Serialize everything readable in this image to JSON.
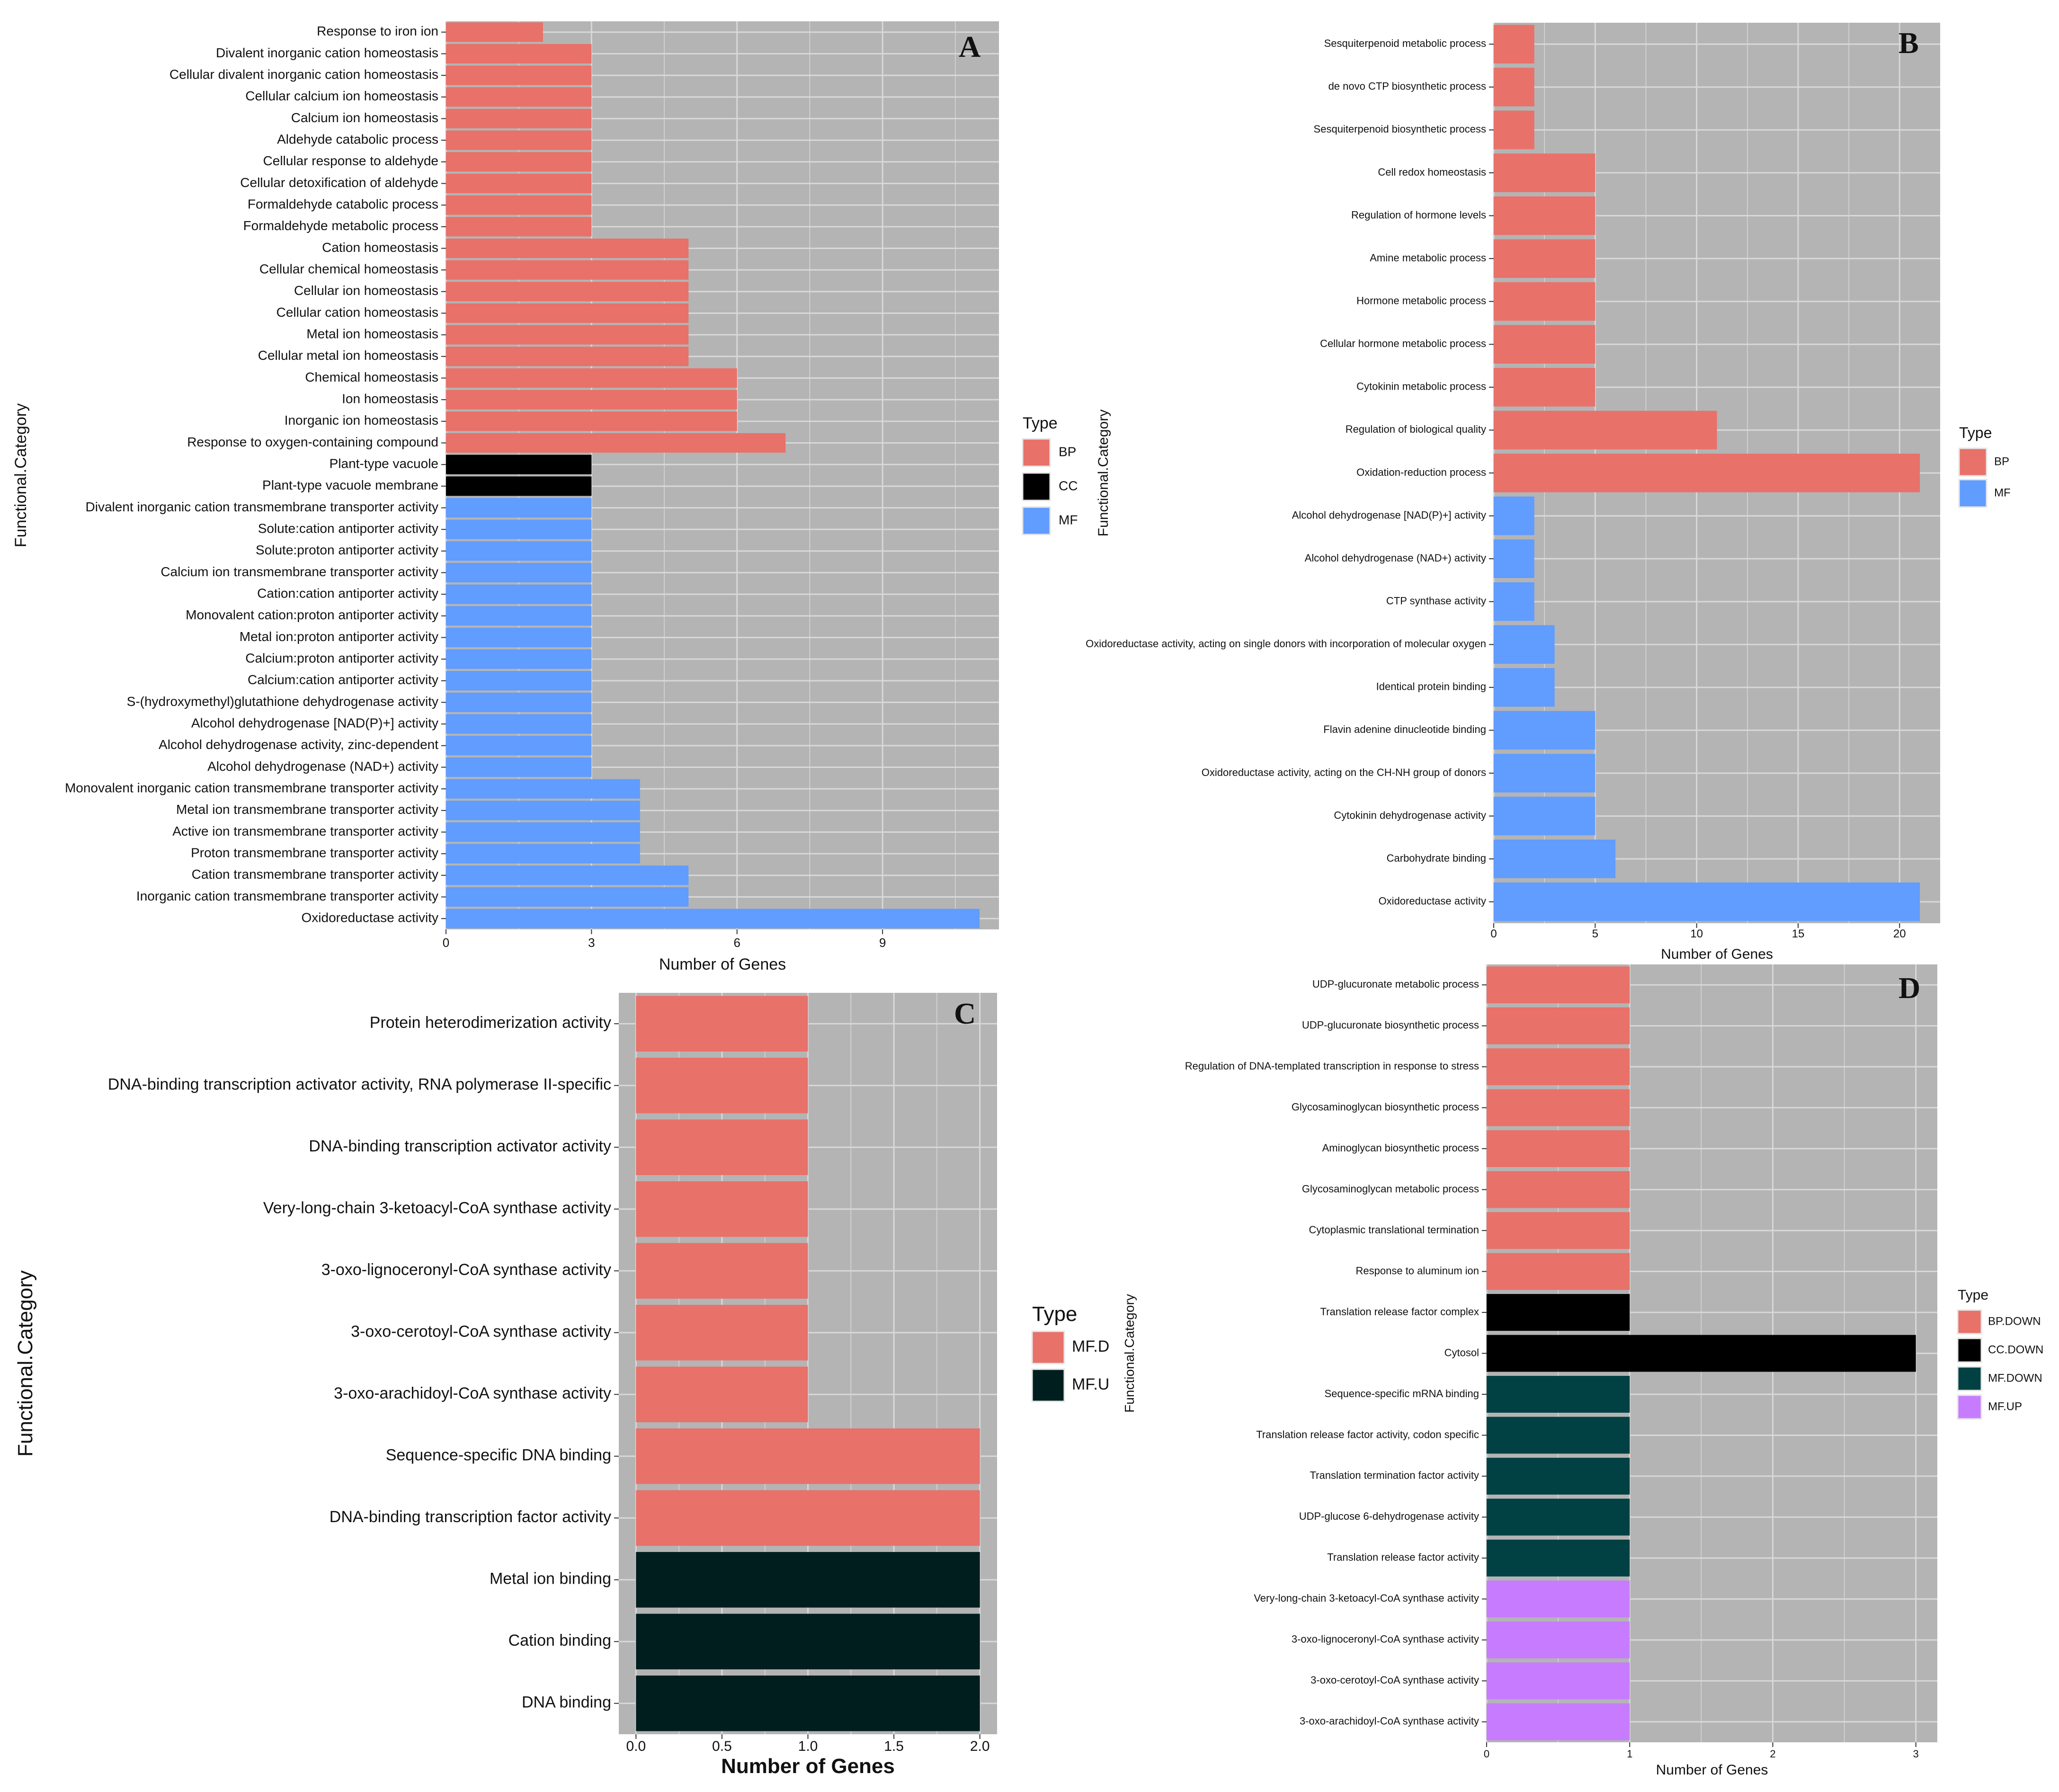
{
  "figure": {
    "panel_bg": "#b4b4b4",
    "grid_color": "#d8d8d8",
    "type_colors": {
      "BP": "#e8716a",
      "CC": "#000000",
      "MF": "#619cff",
      "MF.D": "#e8716a",
      "MF.U": "#011e1e",
      "BP.DOWN": "#e8716a",
      "CC.DOWN": "#000000",
      "MF.DOWN": "#024143",
      "MF.UP": "#c77cff"
    }
  },
  "chart_data": [
    {
      "panel": "A",
      "type": "bar",
      "orientation": "horizontal",
      "xlabel": "Number of Genes",
      "ylabel": "Functional.Category",
      "xlim": [
        0,
        11.4
      ],
      "xticks": [
        "0",
        "3",
        "6",
        "9"
      ],
      "grid": true,
      "legend": {
        "title": "Type",
        "items": [
          "BP",
          "CC",
          "MF"
        ],
        "position": "right"
      },
      "bars": [
        {
          "label": "Response to iron ion",
          "value": 2,
          "type": "BP"
        },
        {
          "label": "Divalent inorganic cation homeostasis",
          "value": 3,
          "type": "BP"
        },
        {
          "label": "Cellular divalent inorganic cation homeostasis",
          "value": 3,
          "type": "BP"
        },
        {
          "label": "Cellular calcium ion homeostasis",
          "value": 3,
          "type": "BP"
        },
        {
          "label": "Calcium ion homeostasis",
          "value": 3,
          "type": "BP"
        },
        {
          "label": "Aldehyde catabolic process",
          "value": 3,
          "type": "BP"
        },
        {
          "label": "Cellular response to aldehyde",
          "value": 3,
          "type": "BP"
        },
        {
          "label": "Cellular detoxification of aldehyde",
          "value": 3,
          "type": "BP"
        },
        {
          "label": "Formaldehyde catabolic process",
          "value": 3,
          "type": "BP"
        },
        {
          "label": "Formaldehyde metabolic process",
          "value": 3,
          "type": "BP"
        },
        {
          "label": "Cation homeostasis",
          "value": 5,
          "type": "BP"
        },
        {
          "label": "Cellular chemical homeostasis",
          "value": 5,
          "type": "BP"
        },
        {
          "label": "Cellular ion homeostasis",
          "value": 5,
          "type": "BP"
        },
        {
          "label": "Cellular cation homeostasis",
          "value": 5,
          "type": "BP"
        },
        {
          "label": "Metal ion homeostasis",
          "value": 5,
          "type": "BP"
        },
        {
          "label": "Cellular metal ion homeostasis",
          "value": 5,
          "type": "BP"
        },
        {
          "label": "Chemical homeostasis",
          "value": 6,
          "type": "BP"
        },
        {
          "label": "Ion homeostasis",
          "value": 6,
          "type": "BP"
        },
        {
          "label": "Inorganic ion homeostasis",
          "value": 6,
          "type": "BP"
        },
        {
          "label": "Response to oxygen-containing compound",
          "value": 7,
          "type": "BP"
        },
        {
          "label": "Plant-type vacuole",
          "value": 3,
          "type": "CC"
        },
        {
          "label": "Plant-type vacuole membrane",
          "value": 3,
          "type": "CC"
        },
        {
          "label": "Divalent inorganic cation transmembrane transporter activity",
          "value": 3,
          "type": "MF"
        },
        {
          "label": "Solute:cation antiporter activity",
          "value": 3,
          "type": "MF"
        },
        {
          "label": "Solute:proton antiporter activity",
          "value": 3,
          "type": "MF"
        },
        {
          "label": "Calcium ion transmembrane transporter activity",
          "value": 3,
          "type": "MF"
        },
        {
          "label": "Cation:cation antiporter activity",
          "value": 3,
          "type": "MF"
        },
        {
          "label": "Monovalent cation:proton antiporter activity",
          "value": 3,
          "type": "MF"
        },
        {
          "label": "Metal ion:proton antiporter activity",
          "value": 3,
          "type": "MF"
        },
        {
          "label": "Calcium:proton antiporter activity",
          "value": 3,
          "type": "MF"
        },
        {
          "label": "Calcium:cation antiporter activity",
          "value": 3,
          "type": "MF"
        },
        {
          "label": "S-(hydroxymethyl)glutathione dehydrogenase activity",
          "value": 3,
          "type": "MF"
        },
        {
          "label": "Alcohol dehydrogenase [NAD(P)+] activity",
          "value": 3,
          "type": "MF"
        },
        {
          "label": "Alcohol dehydrogenase activity, zinc-dependent",
          "value": 3,
          "type": "MF"
        },
        {
          "label": "Alcohol dehydrogenase (NAD+) activity",
          "value": 3,
          "type": "MF"
        },
        {
          "label": "Monovalent inorganic cation transmembrane transporter activity",
          "value": 4,
          "type": "MF"
        },
        {
          "label": "Metal ion transmembrane transporter activity",
          "value": 4,
          "type": "MF"
        },
        {
          "label": "Active ion transmembrane transporter activity",
          "value": 4,
          "type": "MF"
        },
        {
          "label": "Proton transmembrane transporter activity",
          "value": 4,
          "type": "MF"
        },
        {
          "label": "Cation transmembrane transporter activity",
          "value": 5,
          "type": "MF"
        },
        {
          "label": "Inorganic cation transmembrane transporter activity",
          "value": 5,
          "type": "MF"
        },
        {
          "label": "Oxidoreductase activity",
          "value": 11,
          "type": "MF"
        }
      ]
    },
    {
      "panel": "B",
      "type": "bar",
      "orientation": "horizontal",
      "xlabel": "Number of Genes",
      "ylabel": "Functional.Category",
      "xlim": [
        0,
        22
      ],
      "xticks": [
        "0",
        "5",
        "10",
        "15",
        "20"
      ],
      "grid": true,
      "legend": {
        "title": "Type",
        "items": [
          "BP",
          "MF"
        ],
        "position": "right"
      },
      "bars": [
        {
          "label": "Sesquiterpenoid metabolic process",
          "value": 2,
          "type": "BP"
        },
        {
          "label": "de novo  CTP biosynthetic process",
          "value": 2,
          "type": "BP"
        },
        {
          "label": "Sesquiterpenoid biosynthetic process",
          "value": 2,
          "type": "BP"
        },
        {
          "label": "Cell redox homeostasis",
          "value": 5,
          "type": "BP"
        },
        {
          "label": "Regulation of hormone levels",
          "value": 5,
          "type": "BP"
        },
        {
          "label": "Amine metabolic process",
          "value": 5,
          "type": "BP"
        },
        {
          "label": "Hormone metabolic process",
          "value": 5,
          "type": "BP"
        },
        {
          "label": "Cellular hormone metabolic process",
          "value": 5,
          "type": "BP"
        },
        {
          "label": "Cytokinin metabolic process",
          "value": 5,
          "type": "BP"
        },
        {
          "label": "Regulation of biological quality",
          "value": 11,
          "type": "BP"
        },
        {
          "label": "Oxidation-reduction process",
          "value": 21,
          "type": "BP"
        },
        {
          "label": "Alcohol dehydrogenase [NAD(P)+] activity",
          "value": 2,
          "type": "MF"
        },
        {
          "label": "Alcohol dehydrogenase (NAD+) activity",
          "value": 2,
          "type": "MF"
        },
        {
          "label": "CTP synthase activity",
          "value": 2,
          "type": "MF"
        },
        {
          "label": "Oxidoreductase activity, acting on single donors with incorporation of molecular oxygen",
          "value": 3,
          "type": "MF"
        },
        {
          "label": "Identical protein binding",
          "value": 3,
          "type": "MF"
        },
        {
          "label": "Flavin adenine dinucleotide binding",
          "value": 5,
          "type": "MF"
        },
        {
          "label": "Oxidoreductase activity, acting on the CH-NH group of donors",
          "value": 5,
          "type": "MF"
        },
        {
          "label": "Cytokinin dehydrogenase activity",
          "value": 5,
          "type": "MF"
        },
        {
          "label": "Carbohydrate binding",
          "value": 6,
          "type": "MF"
        },
        {
          "label": "Oxidoreductase activity",
          "value": 21,
          "type": "MF"
        }
      ]
    },
    {
      "panel": "C",
      "type": "bar",
      "orientation": "horizontal",
      "xlabel": "Number of Genes",
      "ylabel": "Functional.Category",
      "xlim": [
        -0.1,
        2.1
      ],
      "xticks": [
        "0.0",
        "0.5",
        "1.0",
        "1.5",
        "2.0"
      ],
      "grid": true,
      "legend": {
        "title": "Type",
        "items": [
          "MF.D",
          "MF.U"
        ],
        "position": "right"
      },
      "bars": [
        {
          "label": "Protein heterodimerization activity",
          "value": 1,
          "type": "MF.D"
        },
        {
          "label": "DNA-binding transcription activator activity, RNA polymerase II-specific",
          "value": 1,
          "type": "MF.D"
        },
        {
          "label": "DNA-binding transcription activator activity",
          "value": 1,
          "type": "MF.D"
        },
        {
          "label": "Very-long-chain 3-ketoacyl-CoA synthase activity",
          "value": 1,
          "type": "MF.D"
        },
        {
          "label": "3-oxo-lignoceronyl-CoA synthase activity",
          "value": 1,
          "type": "MF.D"
        },
        {
          "label": "3-oxo-cerotoyl-CoA synthase activity",
          "value": 1,
          "type": "MF.D"
        },
        {
          "label": "3-oxo-arachidoyl-CoA synthase activity",
          "value": 1,
          "type": "MF.D"
        },
        {
          "label": "Sequence-specific DNA binding",
          "value": 2,
          "type": "MF.D"
        },
        {
          "label": "DNA-binding transcription factor activity",
          "value": 2,
          "type": "MF.D"
        },
        {
          "label": "Metal ion binding",
          "value": 2,
          "type": "MF.U"
        },
        {
          "label": "Cation binding",
          "value": 2,
          "type": "MF.U"
        },
        {
          "label": "DNA binding",
          "value": 2,
          "type": "MF.U"
        }
      ]
    },
    {
      "panel": "D",
      "type": "bar",
      "orientation": "horizontal",
      "xlabel": "Number of Genes",
      "ylabel": "Functional.Category",
      "xlim": [
        0,
        3.15
      ],
      "xticks": [
        "0",
        "1",
        "2",
        "3"
      ],
      "grid": true,
      "legend": {
        "title": "Type",
        "items": [
          "BP.DOWN",
          "CC.DOWN",
          "MF.DOWN",
          "MF.UP"
        ],
        "position": "right"
      },
      "bars": [
        {
          "label": "UDP-glucuronate metabolic process",
          "value": 1,
          "type": "BP.DOWN"
        },
        {
          "label": "UDP-glucuronate biosynthetic process",
          "value": 1,
          "type": "BP.DOWN"
        },
        {
          "label": "Regulation of DNA-templated transcription in response to stress",
          "value": 1,
          "type": "BP.DOWN"
        },
        {
          "label": "Glycosaminoglycan biosynthetic process",
          "value": 1,
          "type": "BP.DOWN"
        },
        {
          "label": "Aminoglycan biosynthetic process",
          "value": 1,
          "type": "BP.DOWN"
        },
        {
          "label": "Glycosaminoglycan metabolic process",
          "value": 1,
          "type": "BP.DOWN"
        },
        {
          "label": "Cytoplasmic translational termination",
          "value": 1,
          "type": "BP.DOWN"
        },
        {
          "label": "Response to aluminum ion",
          "value": 1,
          "type": "BP.DOWN"
        },
        {
          "label": "Translation release factor complex",
          "value": 1,
          "type": "CC.DOWN"
        },
        {
          "label": "Cytosol",
          "value": 3,
          "type": "CC.DOWN"
        },
        {
          "label": "Sequence-specific mRNA binding",
          "value": 1,
          "type": "MF.DOWN"
        },
        {
          "label": "Translation release factor activity, codon specific",
          "value": 1,
          "type": "MF.DOWN"
        },
        {
          "label": "Translation termination factor activity",
          "value": 1,
          "type": "MF.DOWN"
        },
        {
          "label": "UDP-glucose 6-dehydrogenase activity",
          "value": 1,
          "type": "MF.DOWN"
        },
        {
          "label": "Translation release factor activity",
          "value": 1,
          "type": "MF.DOWN"
        },
        {
          "label": "Very-long-chain 3-ketoacyl-CoA synthase activity",
          "value": 1,
          "type": "MF.UP"
        },
        {
          "label": "3-oxo-lignoceronyl-CoA synthase activity",
          "value": 1,
          "type": "MF.UP"
        },
        {
          "label": "3-oxo-cerotoyl-CoA synthase activity",
          "value": 1,
          "type": "MF.UP"
        },
        {
          "label": "3-oxo-arachidoyl-CoA synthase activity",
          "value": 1,
          "type": "MF.UP"
        }
      ]
    }
  ]
}
